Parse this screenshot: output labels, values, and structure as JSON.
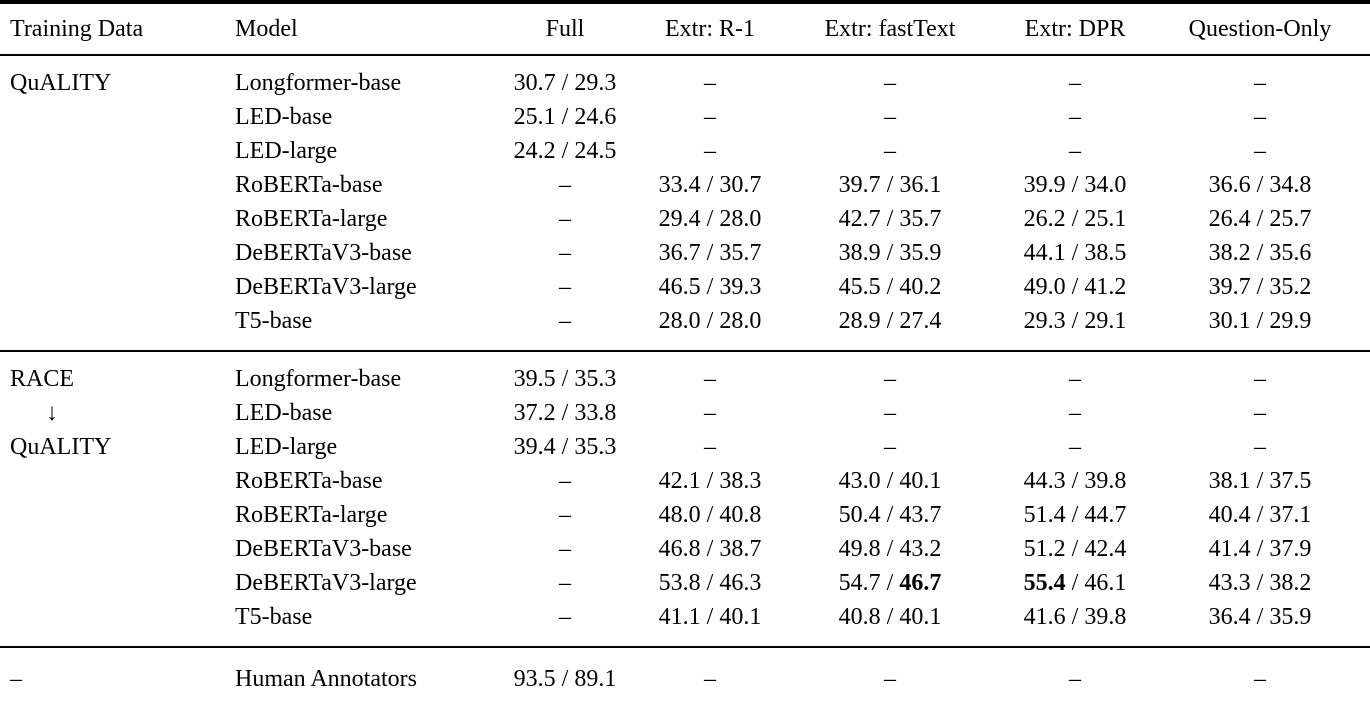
{
  "table": {
    "columns": [
      "Training Data",
      "Model",
      "Full",
      "Extr: R-1",
      "Extr: fastText",
      "Extr: DPR",
      "Question-Only"
    ],
    "dash": "–",
    "groups": [
      {
        "rows": [
          {
            "training": "QuALITY",
            "model": "Longformer-base",
            "cells": [
              [
                {
                  "t": "30.7 / 29.3"
                }
              ],
              [
                {
                  "t": "–"
                }
              ],
              [
                {
                  "t": "–"
                }
              ],
              [
                {
                  "t": "–"
                }
              ],
              [
                {
                  "t": "–"
                }
              ]
            ]
          },
          {
            "training": "",
            "model": "LED-base",
            "cells": [
              [
                {
                  "t": "25.1 / 24.6"
                }
              ],
              [
                {
                  "t": "–"
                }
              ],
              [
                {
                  "t": "–"
                }
              ],
              [
                {
                  "t": "–"
                }
              ],
              [
                {
                  "t": "–"
                }
              ]
            ]
          },
          {
            "training": "",
            "model": "LED-large",
            "cells": [
              [
                {
                  "t": "24.2 / 24.5"
                }
              ],
              [
                {
                  "t": "–"
                }
              ],
              [
                {
                  "t": "–"
                }
              ],
              [
                {
                  "t": "–"
                }
              ],
              [
                {
                  "t": "–"
                }
              ]
            ]
          },
          {
            "training": "",
            "model": "RoBERTa-base",
            "cells": [
              [
                {
                  "t": "–"
                }
              ],
              [
                {
                  "t": "33.4 / 30.7"
                }
              ],
              [
                {
                  "t": "39.7 / 36.1"
                }
              ],
              [
                {
                  "t": "39.9 / 34.0"
                }
              ],
              [
                {
                  "t": "36.6 / 34.8"
                }
              ]
            ]
          },
          {
            "training": "",
            "model": "RoBERTa-large",
            "cells": [
              [
                {
                  "t": "–"
                }
              ],
              [
                {
                  "t": "29.4 / 28.0"
                }
              ],
              [
                {
                  "t": "42.7 / 35.7"
                }
              ],
              [
                {
                  "t": "26.2 / 25.1"
                }
              ],
              [
                {
                  "t": "26.4 / 25.7"
                }
              ]
            ]
          },
          {
            "training": "",
            "model": "DeBERTaV3-base",
            "cells": [
              [
                {
                  "t": "–"
                }
              ],
              [
                {
                  "t": "36.7 / 35.7"
                }
              ],
              [
                {
                  "t": "38.9 / 35.9"
                }
              ],
              [
                {
                  "t": "44.1 / 38.5"
                }
              ],
              [
                {
                  "t": "38.2 / 35.6"
                }
              ]
            ]
          },
          {
            "training": "",
            "model": "DeBERTaV3-large",
            "cells": [
              [
                {
                  "t": "–"
                }
              ],
              [
                {
                  "t": "46.5 / 39.3"
                }
              ],
              [
                {
                  "t": "45.5 / 40.2"
                }
              ],
              [
                {
                  "t": "49.0 / 41.2"
                }
              ],
              [
                {
                  "t": "39.7 / 35.2"
                }
              ]
            ]
          },
          {
            "training": "",
            "model": "T5-base",
            "cells": [
              [
                {
                  "t": "–"
                }
              ],
              [
                {
                  "t": "28.0 / 28.0"
                }
              ],
              [
                {
                  "t": "28.9 / 27.4"
                }
              ],
              [
                {
                  "t": "29.3 / 29.1"
                }
              ],
              [
                {
                  "t": "30.1 / 29.9"
                }
              ]
            ]
          }
        ]
      },
      {
        "rows": [
          {
            "training": "RACE",
            "model": "Longformer-base",
            "cells": [
              [
                {
                  "t": "39.5 / 35.3"
                }
              ],
              [
                {
                  "t": "–"
                }
              ],
              [
                {
                  "t": "–"
                }
              ],
              [
                {
                  "t": "–"
                }
              ],
              [
                {
                  "t": "–"
                }
              ]
            ]
          },
          {
            "training": "↓",
            "model": "LED-base",
            "cells": [
              [
                {
                  "t": "37.2 / 33.8"
                }
              ],
              [
                {
                  "t": "–"
                }
              ],
              [
                {
                  "t": "–"
                }
              ],
              [
                {
                  "t": "–"
                }
              ],
              [
                {
                  "t": "–"
                }
              ]
            ]
          },
          {
            "training": "QuALITY",
            "model": "LED-large",
            "cells": [
              [
                {
                  "t": "39.4 / 35.3"
                }
              ],
              [
                {
                  "t": "–"
                }
              ],
              [
                {
                  "t": "–"
                }
              ],
              [
                {
                  "t": "–"
                }
              ],
              [
                {
                  "t": "–"
                }
              ]
            ]
          },
          {
            "training": "",
            "model": "RoBERTa-base",
            "cells": [
              [
                {
                  "t": "–"
                }
              ],
              [
                {
                  "t": "42.1 / 38.3"
                }
              ],
              [
                {
                  "t": "43.0 / 40.1"
                }
              ],
              [
                {
                  "t": "44.3 / 39.8"
                }
              ],
              [
                {
                  "t": "38.1 / 37.5"
                }
              ]
            ]
          },
          {
            "training": "",
            "model": "RoBERTa-large",
            "cells": [
              [
                {
                  "t": "–"
                }
              ],
              [
                {
                  "t": "48.0 / 40.8"
                }
              ],
              [
                {
                  "t": "50.4 / 43.7"
                }
              ],
              [
                {
                  "t": "51.4 / 44.7"
                }
              ],
              [
                {
                  "t": "40.4 / 37.1"
                }
              ]
            ]
          },
          {
            "training": "",
            "model": "DeBERTaV3-base",
            "cells": [
              [
                {
                  "t": "–"
                }
              ],
              [
                {
                  "t": "46.8 / 38.7"
                }
              ],
              [
                {
                  "t": "49.8 / 43.2"
                }
              ],
              [
                {
                  "t": "51.2 / 42.4"
                }
              ],
              [
                {
                  "t": "41.4 / 37.9"
                }
              ]
            ]
          },
          {
            "training": "",
            "model": "DeBERTaV3-large",
            "cells": [
              [
                {
                  "t": "–"
                }
              ],
              [
                {
                  "t": "53.8 / 46.3"
                }
              ],
              [
                {
                  "t": "54.7 / "
                },
                {
                  "t": "46.7",
                  "b": true
                }
              ],
              [
                {
                  "t": "55.4",
                  "b": true
                },
                {
                  "t": " / 46.1"
                }
              ],
              [
                {
                  "t": "43.3 / 38.2"
                }
              ]
            ]
          },
          {
            "training": "",
            "model": "T5-base",
            "cells": [
              [
                {
                  "t": "–"
                }
              ],
              [
                {
                  "t": "41.1 / 40.1"
                }
              ],
              [
                {
                  "t": "40.8 / 40.1"
                }
              ],
              [
                {
                  "t": "41.6 / 39.8"
                }
              ],
              [
                {
                  "t": "36.4 / 35.9"
                }
              ]
            ]
          }
        ]
      },
      {
        "rows": [
          {
            "training": "–",
            "model": "Human Annotators",
            "cells": [
              [
                {
                  "t": "93.5 / 89.1"
                }
              ],
              [
                {
                  "t": "–"
                }
              ],
              [
                {
                  "t": "–"
                }
              ],
              [
                {
                  "t": "–"
                }
              ],
              [
                {
                  "t": "–"
                }
              ]
            ]
          }
        ]
      }
    ]
  }
}
